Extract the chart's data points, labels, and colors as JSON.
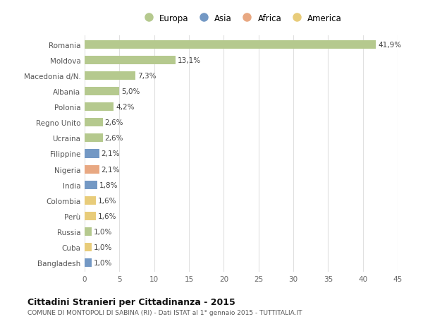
{
  "countries": [
    "Romania",
    "Moldova",
    "Macedonia d/N.",
    "Albania",
    "Polonia",
    "Regno Unito",
    "Ucraina",
    "Filippine",
    "Nigeria",
    "India",
    "Colombia",
    "Perù",
    "Russia",
    "Cuba",
    "Bangladesh"
  ],
  "values": [
    41.9,
    13.1,
    7.3,
    5.0,
    4.2,
    2.6,
    2.6,
    2.1,
    2.1,
    1.8,
    1.6,
    1.6,
    1.0,
    1.0,
    1.0
  ],
  "labels": [
    "41,9%",
    "13,1%",
    "7,3%",
    "5,0%",
    "4,2%",
    "2,6%",
    "2,6%",
    "2,1%",
    "2,1%",
    "1,8%",
    "1,6%",
    "1,6%",
    "1,0%",
    "1,0%",
    "1,0%"
  ],
  "continents": [
    "Europa",
    "Europa",
    "Europa",
    "Europa",
    "Europa",
    "Europa",
    "Europa",
    "Asia",
    "Africa",
    "Asia",
    "America",
    "America",
    "Europa",
    "America",
    "Asia"
  ],
  "colors": {
    "Europa": "#b5c98e",
    "Asia": "#7398c4",
    "Africa": "#e8a882",
    "America": "#e8cc7a"
  },
  "legend_order": [
    "Europa",
    "Asia",
    "Africa",
    "America"
  ],
  "legend_colors": [
    "#b5c98e",
    "#7398c4",
    "#e8a882",
    "#e8cc7a"
  ],
  "title": "Cittadini Stranieri per Cittadinanza - 2015",
  "subtitle": "COMUNE DI MONTOPOLI DI SABINA (RI) - Dati ISTAT al 1° gennaio 2015 - TUTTITALIA.IT",
  "xlim": [
    0,
    45
  ],
  "xticks": [
    0,
    5,
    10,
    15,
    20,
    25,
    30,
    35,
    40,
    45
  ],
  "background_color": "#ffffff",
  "grid_color": "#e0e0e0"
}
